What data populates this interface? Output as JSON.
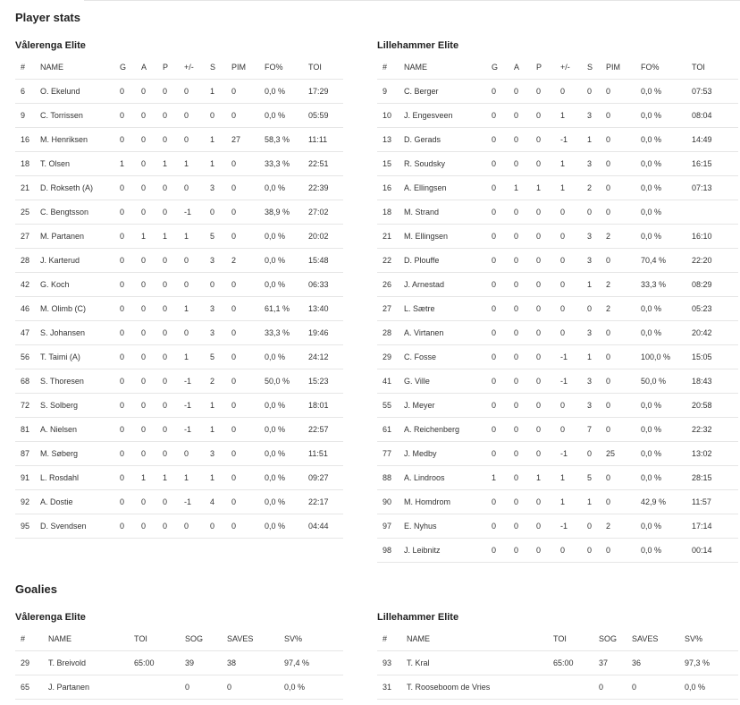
{
  "player_stats_title": "Player stats",
  "goalies_title": "Goalies",
  "player_headers": [
    "#",
    "NAME",
    "G",
    "A",
    "P",
    "+/-",
    "S",
    "PIM",
    "FO%",
    "TOI"
  ],
  "goalie_headers": [
    "#",
    "NAME",
    "TOI",
    "SOG",
    "SAVES",
    "SV%"
  ],
  "teams": {
    "home": {
      "name": "Vålerenga Elite",
      "players": [
        [
          "6",
          "O. Ekelund",
          "0",
          "0",
          "0",
          "0",
          "1",
          "0",
          "0,0 %",
          "17:29"
        ],
        [
          "9",
          "C. Torrissen",
          "0",
          "0",
          "0",
          "0",
          "0",
          "0",
          "0,0 %",
          "05:59"
        ],
        [
          "16",
          "M. Henriksen",
          "0",
          "0",
          "0",
          "0",
          "1",
          "27",
          "58,3 %",
          "11:11"
        ],
        [
          "18",
          "T. Olsen",
          "1",
          "0",
          "1",
          "1",
          "1",
          "0",
          "33,3 %",
          "22:51"
        ],
        [
          "21",
          "D. Rokseth (A)",
          "0",
          "0",
          "0",
          "0",
          "3",
          "0",
          "0,0 %",
          "22:39"
        ],
        [
          "25",
          "C. Bengtsson",
          "0",
          "0",
          "0",
          "-1",
          "0",
          "0",
          "38,9 %",
          "27:02"
        ],
        [
          "27",
          "M. Partanen",
          "0",
          "1",
          "1",
          "1",
          "5",
          "0",
          "0,0 %",
          "20:02"
        ],
        [
          "28",
          "J. Karterud",
          "0",
          "0",
          "0",
          "0",
          "3",
          "2",
          "0,0 %",
          "15:48"
        ],
        [
          "42",
          "G. Koch",
          "0",
          "0",
          "0",
          "0",
          "0",
          "0",
          "0,0 %",
          "06:33"
        ],
        [
          "46",
          "M. Olimb (C)",
          "0",
          "0",
          "0",
          "1",
          "3",
          "0",
          "61,1 %",
          "13:40"
        ],
        [
          "47",
          "S. Johansen",
          "0",
          "0",
          "0",
          "0",
          "3",
          "0",
          "33,3 %",
          "19:46"
        ],
        [
          "56",
          "T. Taimi (A)",
          "0",
          "0",
          "0",
          "1",
          "5",
          "0",
          "0,0 %",
          "24:12"
        ],
        [
          "68",
          "S. Thoresen",
          "0",
          "0",
          "0",
          "-1",
          "2",
          "0",
          "50,0 %",
          "15:23"
        ],
        [
          "72",
          "S. Solberg",
          "0",
          "0",
          "0",
          "-1",
          "1",
          "0",
          "0,0 %",
          "18:01"
        ],
        [
          "81",
          "A. Nielsen",
          "0",
          "0",
          "0",
          "-1",
          "1",
          "0",
          "0,0 %",
          "22:57"
        ],
        [
          "87",
          "M. Søberg",
          "0",
          "0",
          "0",
          "0",
          "3",
          "0",
          "0,0 %",
          "11:51"
        ],
        [
          "91",
          "L. Rosdahl",
          "0",
          "1",
          "1",
          "1",
          "1",
          "0",
          "0,0 %",
          "09:27"
        ],
        [
          "92",
          "A. Dostie",
          "0",
          "0",
          "0",
          "-1",
          "4",
          "0",
          "0,0 %",
          "22:17"
        ],
        [
          "95",
          "D. Svendsen",
          "0",
          "0",
          "0",
          "0",
          "0",
          "0",
          "0,0 %",
          "04:44"
        ]
      ],
      "goalies": [
        [
          "29",
          "T. Breivold",
          "65:00",
          "39",
          "38",
          "97,4 %"
        ],
        [
          "65",
          "J. Partanen",
          "",
          "0",
          "0",
          "0,0 %"
        ]
      ]
    },
    "away": {
      "name": "Lillehammer Elite",
      "players": [
        [
          "9",
          "C. Berger",
          "0",
          "0",
          "0",
          "0",
          "0",
          "0",
          "0,0 %",
          "07:53"
        ],
        [
          "10",
          "J. Engesveen",
          "0",
          "0",
          "0",
          "1",
          "3",
          "0",
          "0,0 %",
          "08:04"
        ],
        [
          "13",
          "D. Gerads",
          "0",
          "0",
          "0",
          "-1",
          "1",
          "0",
          "0,0 %",
          "14:49"
        ],
        [
          "15",
          "R. Soudsky",
          "0",
          "0",
          "0",
          "1",
          "3",
          "0",
          "0,0 %",
          "16:15"
        ],
        [
          "16",
          "A. Ellingsen",
          "0",
          "1",
          "1",
          "1",
          "2",
          "0",
          "0,0 %",
          "07:13"
        ],
        [
          "18",
          "M. Strand",
          "0",
          "0",
          "0",
          "0",
          "0",
          "0",
          "0,0 %",
          ""
        ],
        [
          "21",
          "M. Ellingsen",
          "0",
          "0",
          "0",
          "0",
          "3",
          "2",
          "0,0 %",
          "16:10"
        ],
        [
          "22",
          "D. Plouffe",
          "0",
          "0",
          "0",
          "0",
          "3",
          "0",
          "70,4 %",
          "22:20"
        ],
        [
          "26",
          "J. Arnestad",
          "0",
          "0",
          "0",
          "0",
          "1",
          "2",
          "33,3 %",
          "08:29"
        ],
        [
          "27",
          "L. Sætre",
          "0",
          "0",
          "0",
          "0",
          "0",
          "2",
          "0,0 %",
          "05:23"
        ],
        [
          "28",
          "A. Virtanen",
          "0",
          "0",
          "0",
          "0",
          "3",
          "0",
          "0,0 %",
          "20:42"
        ],
        [
          "29",
          "C. Fosse",
          "0",
          "0",
          "0",
          "-1",
          "1",
          "0",
          "100,0 %",
          "15:05"
        ],
        [
          "41",
          "G. Ville",
          "0",
          "0",
          "0",
          "-1",
          "3",
          "0",
          "50,0 %",
          "18:43"
        ],
        [
          "55",
          "J. Meyer",
          "0",
          "0",
          "0",
          "0",
          "3",
          "0",
          "0,0 %",
          "20:58"
        ],
        [
          "61",
          "A. Reichenberg",
          "0",
          "0",
          "0",
          "0",
          "7",
          "0",
          "0,0 %",
          "22:32"
        ],
        [
          "77",
          "J. Medby",
          "0",
          "0",
          "0",
          "-1",
          "0",
          "25",
          "0,0 %",
          "13:02"
        ],
        [
          "88",
          "A. Lindroos",
          "1",
          "0",
          "1",
          "1",
          "5",
          "0",
          "0,0 %",
          "28:15"
        ],
        [
          "90",
          "M. Homdrom",
          "0",
          "0",
          "0",
          "1",
          "1",
          "0",
          "42,9 %",
          "11:57"
        ],
        [
          "97",
          "E. Nyhus",
          "0",
          "0",
          "0",
          "-1",
          "0",
          "2",
          "0,0 %",
          "17:14"
        ],
        [
          "98",
          "J. Leibnitz",
          "0",
          "0",
          "0",
          "0",
          "0",
          "0",
          "0,0 %",
          "00:14"
        ]
      ],
      "goalies": [
        [
          "93",
          "T. Kral",
          "65:00",
          "37",
          "36",
          "97,3 %"
        ],
        [
          "31",
          "T. Rooseboom de Vries",
          "",
          "0",
          "0",
          "0,0 %"
        ]
      ]
    }
  }
}
